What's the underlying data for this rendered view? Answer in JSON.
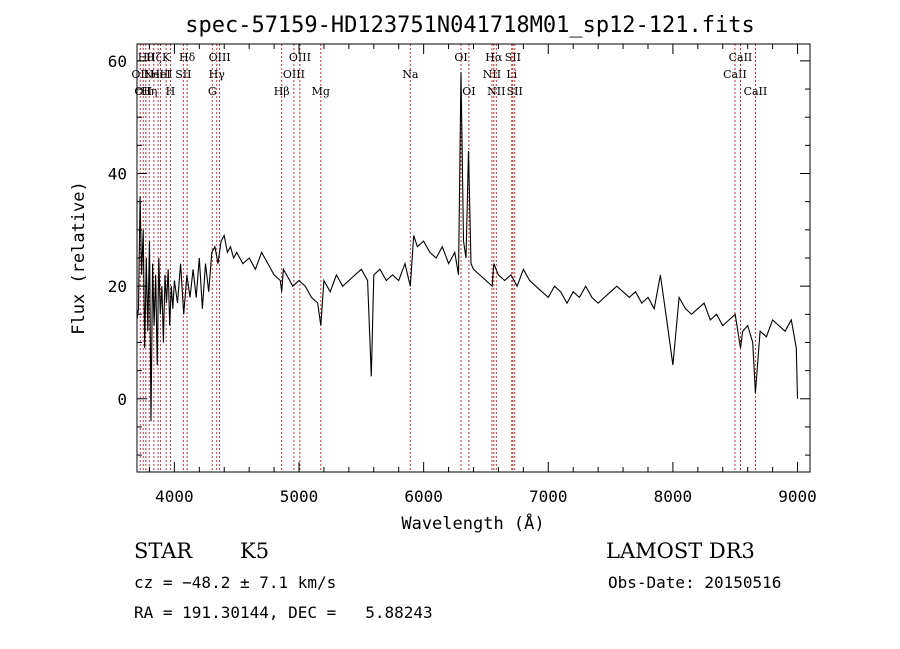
{
  "chart_data": {
    "type": "line",
    "title": "spec-57159-HD123751N041718M01_sp12-121.fits",
    "xlabel": "Wavelength (Å)",
    "ylabel": "Flux (relative)",
    "xlim": [
      3700,
      9100
    ],
    "ylim": [
      -13,
      63
    ],
    "xticks": [
      4000,
      5000,
      6000,
      7000,
      8000,
      9000
    ],
    "yticks": [
      0,
      20,
      40,
      60
    ],
    "series": [
      {
        "name": "spectrum",
        "x": [
          3700,
          3712,
          3725,
          3737,
          3750,
          3762,
          3775,
          3787,
          3800,
          3812,
          3825,
          3837,
          3850,
          3862,
          3875,
          3887,
          3900,
          3912,
          3925,
          3937,
          3950,
          3962,
          3975,
          3987,
          4000,
          4025,
          4050,
          4075,
          4100,
          4125,
          4150,
          4175,
          4200,
          4225,
          4250,
          4275,
          4300,
          4325,
          4350,
          4375,
          4400,
          4425,
          4450,
          4475,
          4500,
          4550,
          4600,
          4650,
          4700,
          4750,
          4800,
          4850,
          4861,
          4875,
          4900,
          4950,
          5000,
          5050,
          5100,
          5150,
          5175,
          5200,
          5250,
          5300,
          5350,
          5400,
          5450,
          5500,
          5550,
          5580,
          5600,
          5650,
          5700,
          5750,
          5800,
          5850,
          5893,
          5920,
          5950,
          6000,
          6050,
          6100,
          6150,
          6200,
          6250,
          6280,
          6300,
          6320,
          6340,
          6360,
          6380,
          6400,
          6450,
          6500,
          6550,
          6563,
          6600,
          6650,
          6700,
          6750,
          6800,
          6850,
          6900,
          6950,
          7000,
          7050,
          7100,
          7150,
          7200,
          7250,
          7300,
          7350,
          7400,
          7450,
          7500,
          7550,
          7600,
          7650,
          7700,
          7750,
          7800,
          7850,
          7900,
          7950,
          8000,
          8050,
          8100,
          8150,
          8200,
          8250,
          8300,
          8350,
          8400,
          8450,
          8500,
          8542,
          8560,
          8600,
          8640,
          8662,
          8700,
          8750,
          8800,
          8850,
          8900,
          8950,
          8990,
          9000
        ],
        "values": [
          14,
          16,
          36,
          22,
          30,
          9,
          25,
          12,
          28,
          -4,
          24,
          13,
          22,
          6,
          25,
          15,
          20,
          10,
          22,
          17,
          23,
          13,
          20,
          16,
          21,
          17,
          24,
          15,
          22,
          18,
          23,
          18,
          25,
          16,
          24,
          19,
          26,
          27,
          24,
          28,
          29,
          26,
          27,
          25,
          26,
          24,
          25,
          23,
          26,
          24,
          22,
          21,
          19,
          23,
          22,
          20,
          21,
          20,
          18,
          17,
          13,
          21,
          19,
          22,
          20,
          21,
          22,
          23,
          21,
          4,
          22,
          23,
          21,
          22,
          21,
          24,
          20,
          29,
          27,
          28,
          26,
          25,
          27,
          24,
          26,
          22,
          58,
          28,
          25,
          44,
          24,
          23,
          22,
          21,
          20,
          24,
          22,
          21,
          22,
          20,
          23,
          21,
          20,
          19,
          18,
          20,
          19,
          17,
          19,
          18,
          20,
          18,
          17,
          18,
          19,
          20,
          19,
          18,
          19,
          17,
          18,
          16,
          22,
          14,
          6,
          18,
          16,
          15,
          16,
          17,
          14,
          15,
          13,
          14,
          15,
          9,
          12,
          13,
          10,
          1,
          12,
          11,
          14,
          13,
          12,
          14,
          9,
          0
        ],
        "color": "#000000"
      }
    ],
    "line_markers": [
      {
        "wavelength": 3726,
        "label": "OII",
        "row": 2
      },
      {
        "wavelength": 3750,
        "label": "OII",
        "row": 3
      },
      {
        "wavelength": 3771,
        "label": "Hθ",
        "row": 1
      },
      {
        "wavelength": 3798,
        "label": "Hη",
        "row": 3
      },
      {
        "wavelength": 3835,
        "label": "Hζ",
        "row": 1
      },
      {
        "wavelength": 3869,
        "label": "NeIII",
        "row": 2
      },
      {
        "wavelength": 3889,
        "label": "HeI",
        "row": 2
      },
      {
        "wavelength": 3934,
        "label": "K",
        "row": 1
      },
      {
        "wavelength": 3968,
        "label": "H",
        "row": 3
      },
      {
        "wavelength": 4072,
        "label": "SII",
        "row": 2
      },
      {
        "wavelength": 4102,
        "label": "Hδ",
        "row": 1
      },
      {
        "wavelength": 4304,
        "label": "G",
        "row": 3
      },
      {
        "wavelength": 4340,
        "label": "Hγ",
        "row": 2
      },
      {
        "wavelength": 4363,
        "label": "OIII",
        "row": 1
      },
      {
        "wavelength": 4861,
        "label": "Hβ",
        "row": 3
      },
      {
        "wavelength": 4959,
        "label": "OIII",
        "row": 2
      },
      {
        "wavelength": 5007,
        "label": "OIII",
        "row": 1
      },
      {
        "wavelength": 5175,
        "label": "Mg",
        "row": 3
      },
      {
        "wavelength": 5893,
        "label": "Na",
        "row": 2
      },
      {
        "wavelength": 6300,
        "label": "OI",
        "row": 1
      },
      {
        "wavelength": 6363,
        "label": "OI",
        "row": 3
      },
      {
        "wavelength": 6548,
        "label": "NII",
        "row": 2
      },
      {
        "wavelength": 6563,
        "label": "Hα",
        "row": 1
      },
      {
        "wavelength": 6583,
        "label": "NII",
        "row": 3
      },
      {
        "wavelength": 6707,
        "label": "Li",
        "row": 2
      },
      {
        "wavelength": 6716,
        "label": "SII",
        "row": 1
      },
      {
        "wavelength": 6731,
        "label": "SII",
        "row": 3
      },
      {
        "wavelength": 8498,
        "label": "CaII",
        "row": 2
      },
      {
        "wavelength": 8542,
        "label": "CaII",
        "row": 1
      },
      {
        "wavelength": 8662,
        "label": "CaII",
        "row": 3
      }
    ]
  },
  "info": {
    "object_class": "STAR",
    "subclass": "K5",
    "cz": "cz = −48.2 ± 7.1 km/s",
    "coords": "RA = 191.30144, DEC =   5.88243",
    "survey": "LAMOST DR3",
    "obs_date": "Obs-Date: 20150516"
  },
  "colors": {
    "line_marker": "#b22222",
    "axes": "#000000"
  }
}
